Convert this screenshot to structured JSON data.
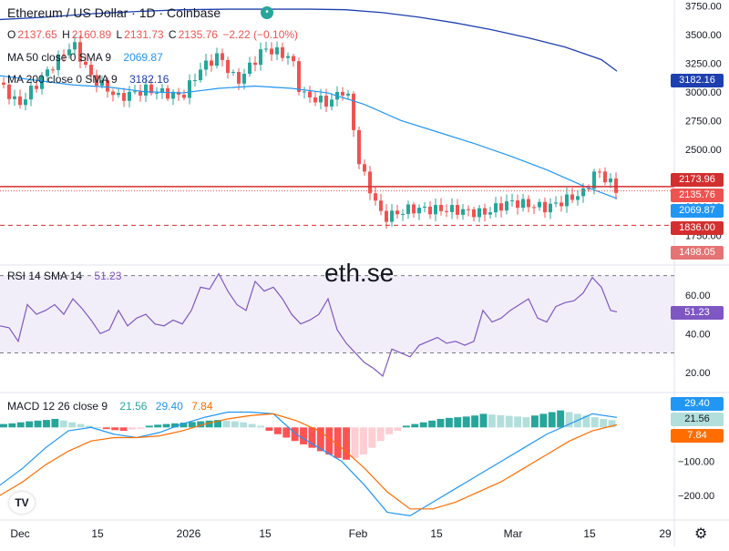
{
  "header": {
    "title": "Ethereum / US Dollar · 1D · Coinbase",
    "ohlc": {
      "o_label": "O",
      "o": "2137.65",
      "h_label": "H",
      "h": "2160.89",
      "l_label": "L",
      "l": "2131.73",
      "c_label": "C",
      "c": "2135.76",
      "change": "−2.22 (−0.10%)"
    },
    "ma50": {
      "label": "MA 50 close 0 SMA 9",
      "value": "2069.87"
    },
    "ma200": {
      "label": "MA 200 close 0 SMA 9",
      "value": "3182.16"
    }
  },
  "watermark": "eth.se",
  "price_axis": {
    "ticks": [
      "3750.00",
      "3500.00",
      "3250.00",
      "3000.00",
      "2750.00",
      "2500.00",
      "2250.00",
      "2000.00",
      "1750.00"
    ]
  },
  "price_pills": {
    "ma200": "3182.16",
    "high_line": "2173.96",
    "last": "2135.76",
    "ma50": "2069.87",
    "low_line": "1836.00",
    "bottom": "1498.05"
  },
  "rsi": {
    "label": "RSI 14 SMA 14",
    "value": "51.23",
    "ticks": [
      "60.00",
      "40.00",
      "20.00"
    ]
  },
  "macd": {
    "label": "MACD 12 26 close 9",
    "v1": "21.56",
    "v2": "29.40",
    "v3": "7.84",
    "ticks": [
      "−100.00",
      "−200.00"
    ],
    "pills": {
      "macd": "29.40",
      "hist": "21.56",
      "signal": "7.84"
    }
  },
  "time_axis": [
    "Dec",
    "15",
    "2026",
    "15",
    "Feb",
    "15",
    "Mar",
    "15",
    "29"
  ],
  "colors": {
    "up": "#26a69a",
    "down": "#ef5350",
    "ma50": "#2196f3",
    "ma200": "#1e40af",
    "rsi": "#7e57c2",
    "macd": "#2196f3",
    "signal": "#ff6d00",
    "hist_up": "#26a69a",
    "hist_up_light": "#b2dfdb",
    "hist_down": "#ff5252",
    "hist_down_light": "#ffcdd2"
  },
  "chart_data": [
    {
      "type": "candlestick",
      "title": "Ethereum / US Dollar · 1D · Coinbase",
      "ylim": [
        1498.05,
        3800
      ],
      "x": [
        "Dec",
        "15",
        "2026",
        "15",
        "Feb",
        "15",
        "Mar",
        "15",
        "29"
      ],
      "series": [
        {
          "name": "MA 50 close 0 SMA 9",
          "points": [
            [
              0,
              3140
            ],
            [
              40,
              3100
            ],
            [
              80,
              3060
            ],
            [
              120,
              3040
            ],
            [
              160,
              3000
            ],
            [
              200,
              2990
            ],
            [
              240,
              3030
            ],
            [
              280,
              3050
            ],
            [
              320,
              3030
            ],
            [
              360,
              2990
            ],
            [
              400,
              2890
            ],
            [
              440,
              2750
            ],
            [
              480,
              2650
            ],
            [
              520,
              2550
            ],
            [
              560,
              2440
            ],
            [
              600,
              2320
            ],
            [
              640,
              2180
            ],
            [
              677,
              2070
            ]
          ]
        },
        {
          "name": "MA 200 close 0 SMA 9",
          "points": [
            [
              0,
              3630
            ],
            [
              50,
              3650
            ],
            [
              100,
              3680
            ],
            [
              150,
              3700
            ],
            [
              200,
              3715
            ],
            [
              250,
              3720
            ],
            [
              300,
              3720
            ],
            [
              340,
              3720
            ],
            [
              380,
              3715
            ],
            [
              420,
              3690
            ],
            [
              460,
              3650
            ],
            [
              500,
              3600
            ],
            [
              540,
              3540
            ],
            [
              580,
              3470
            ],
            [
              620,
              3390
            ],
            [
              660,
              3280
            ],
            [
              677,
              3180
            ]
          ]
        }
      ],
      "hlines": [
        2173.96,
        1836.0
      ],
      "last": 2135.76
    },
    {
      "type": "line",
      "name": "RSI 14 SMA 14",
      "ylim": [
        10,
        75
      ],
      "bands": [
        30,
        70
      ],
      "x": [
        0,
        10,
        20,
        30,
        40,
        50,
        60,
        70,
        80,
        90,
        100,
        110,
        120,
        130,
        140,
        150,
        160,
        170,
        180,
        190,
        200,
        210,
        220,
        230,
        240,
        250,
        260,
        270,
        280,
        290,
        300,
        310,
        320,
        330,
        340,
        350,
        360,
        370,
        380,
        390,
        400,
        410,
        420,
        430,
        440,
        450,
        460,
        470,
        480,
        490,
        500,
        510,
        520,
        530,
        540,
        550,
        560,
        570,
        580,
        590,
        600,
        610,
        620,
        630,
        640,
        650,
        660,
        670,
        677
      ],
      "values": [
        44,
        43,
        36,
        55,
        50,
        52,
        55,
        50,
        58,
        53,
        47,
        40,
        42,
        52,
        44,
        48,
        50,
        45,
        44,
        47,
        45,
        52,
        64,
        63,
        71,
        62,
        55,
        52,
        67,
        62,
        64,
        58,
        50,
        45,
        47,
        50,
        58,
        42,
        35,
        30,
        25,
        22,
        18,
        32,
        30,
        28,
        34,
        36,
        38,
        35,
        36,
        34,
        36,
        52,
        46,
        48,
        52,
        55,
        58,
        48,
        46,
        54,
        56,
        57,
        61,
        69,
        64,
        52,
        51.23
      ]
    },
    {
      "type": "line",
      "name": "MACD 12 26 close 9",
      "ylim": [
        -270,
        100
      ],
      "x": [
        0,
        25,
        50,
        75,
        100,
        125,
        150,
        175,
        200,
        225,
        250,
        275,
        300,
        325,
        350,
        375,
        400,
        425,
        450,
        475,
        500,
        525,
        550,
        575,
        600,
        625,
        650,
        677
      ],
      "series": [
        {
          "name": "MACD",
          "values": [
            -170,
            -120,
            -60,
            -10,
            0,
            -20,
            -30,
            -15,
            10,
            30,
            45,
            45,
            40,
            -20,
            -60,
            -100,
            -170,
            -250,
            -260,
            -220,
            -180,
            -140,
            -100,
            -60,
            -20,
            10,
            40,
            29.4
          ]
        },
        {
          "name": "Signal",
          "values": [
            -200,
            -160,
            -110,
            -70,
            -40,
            -30,
            -30,
            -25,
            -10,
            10,
            25,
            35,
            40,
            20,
            -10,
            -60,
            -120,
            -190,
            -240,
            -240,
            -220,
            -190,
            -160,
            -120,
            -80,
            -40,
            -10,
            7.84
          ]
        }
      ],
      "histogram": [
        10,
        12,
        15,
        18,
        20,
        22,
        25,
        20,
        15,
        10,
        5,
        0,
        -5,
        -8,
        -10,
        -6,
        -4,
        5,
        8,
        10,
        12,
        14,
        16,
        18,
        20,
        22,
        20,
        18,
        15,
        10,
        5,
        -10,
        -20,
        -30,
        -40,
        -50,
        -60,
        -70,
        -80,
        -90,
        -95,
        -90,
        -80,
        -60,
        -40,
        -20,
        -10,
        5,
        10,
        15,
        20,
        25,
        28,
        30,
        32,
        35,
        40,
        38,
        36,
        34,
        32,
        30,
        35,
        40,
        45,
        50,
        45,
        40,
        35,
        30,
        25,
        21.56
      ]
    }
  ]
}
